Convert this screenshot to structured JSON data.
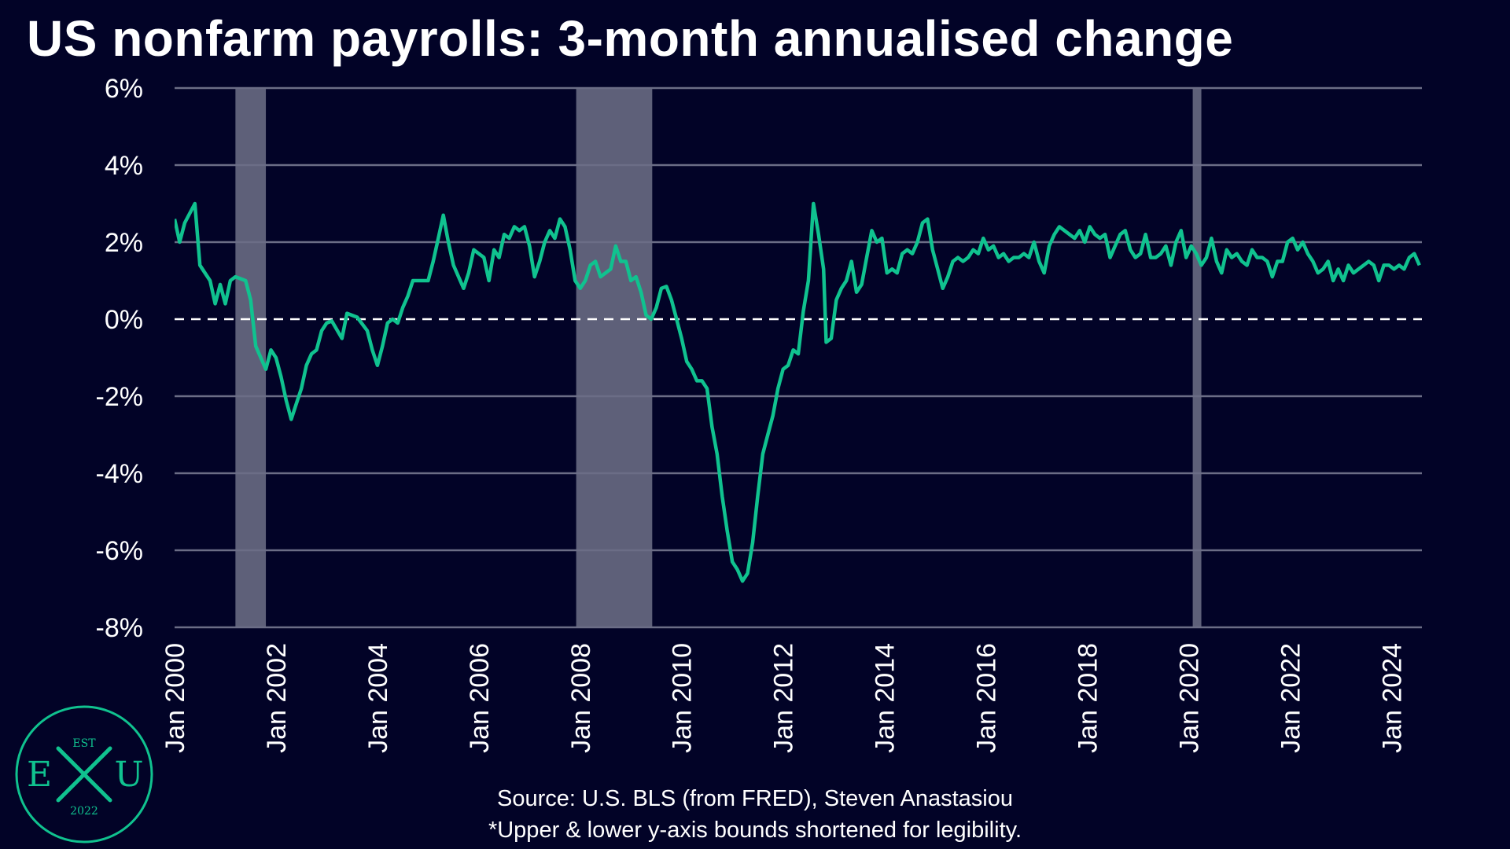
{
  "title": "US nonfarm payrolls: 3-month annualised change",
  "footer": {
    "source": "Source: U.S. BLS (from FRED), Steven Anastasiou",
    "note": "*Upper & lower y-axis bounds shortened for legibility."
  },
  "logo": {
    "top": "EST",
    "left": "E",
    "right": "U",
    "bottom": "2022",
    "center_icon": "crossed-quills-icon"
  },
  "colors": {
    "background": "#020327",
    "line": "#10C28F",
    "recession": "#5E6079",
    "grid": "#6B6D86",
    "zero_line": "#FFFFFF"
  },
  "chart_data": {
    "type": "line",
    "title": "US nonfarm payrolls: 3-month annualised change",
    "ylim": [
      -8,
      6
    ],
    "yticks": [
      6,
      4,
      2,
      0,
      -2,
      -4,
      -6,
      -8
    ],
    "ytick_labels": [
      "6%",
      "4%",
      "2%",
      "0%",
      "-2%",
      "-4%",
      "-6%",
      "-8%"
    ],
    "xlim": [
      2000.0,
      2024.6
    ],
    "xticks": [
      2000,
      2002,
      2004,
      2006,
      2008,
      2010,
      2012,
      2014,
      2016,
      2018,
      2020,
      2022,
      2024
    ],
    "xtick_labels": [
      "Jan 2000",
      "Jan 2002",
      "Jan 2004",
      "Jan 2006",
      "Jan 2008",
      "Jan 2010",
      "Jan 2012",
      "Jan 2014",
      "Jan 2016",
      "Jan 2018",
      "Jan 2020",
      "Jan 2022",
      "Jan 2024"
    ],
    "grid": true,
    "zero_line": "dashed",
    "recessions": [
      [
        2001.2,
        2001.8
      ],
      [
        2007.92,
        2009.42
      ],
      [
        2020.08,
        2020.25
      ]
    ],
    "series": [
      {
        "points": [
          [
            2000.0,
            2.6
          ],
          [
            2000.1,
            2.0
          ],
          [
            2000.2,
            2.5
          ],
          [
            2000.4,
            3.0
          ],
          [
            2000.5,
            1.4
          ],
          [
            2000.7,
            1.0
          ],
          [
            2000.8,
            0.4
          ],
          [
            2000.9,
            0.9
          ],
          [
            2001.0,
            0.4
          ],
          [
            2001.1,
            1.0
          ],
          [
            2001.2,
            1.1
          ],
          [
            2001.4,
            1.0
          ],
          [
            2001.5,
            0.5
          ],
          [
            2001.6,
            -0.7
          ],
          [
            2001.7,
            -1.0
          ],
          [
            2001.8,
            -1.3
          ],
          [
            2001.9,
            -0.8
          ],
          [
            2002.0,
            -1.0
          ],
          [
            2002.1,
            -1.5
          ],
          [
            2002.2,
            -2.1
          ],
          [
            2002.3,
            -2.6
          ],
          [
            2002.4,
            -2.2
          ],
          [
            2002.5,
            -1.8
          ],
          [
            2002.6,
            -1.2
          ],
          [
            2002.7,
            -0.9
          ],
          [
            2002.8,
            -0.8
          ],
          [
            2002.9,
            -0.3
          ],
          [
            2003.0,
            -0.1
          ],
          [
            2003.1,
            -0.05
          ],
          [
            2003.3,
            -0.5
          ],
          [
            2003.4,
            0.15
          ],
          [
            2003.6,
            0.05
          ],
          [
            2003.8,
            -0.3
          ],
          [
            2003.9,
            -0.8
          ],
          [
            2004.0,
            -1.2
          ],
          [
            2004.1,
            -0.7
          ],
          [
            2004.2,
            -0.1
          ],
          [
            2004.3,
            0.0
          ],
          [
            2004.4,
            -0.1
          ],
          [
            2004.5,
            0.3
          ],
          [
            2004.6,
            0.6
          ],
          [
            2004.7,
            1.0
          ],
          [
            2004.9,
            1.0
          ],
          [
            2005.0,
            1.0
          ],
          [
            2005.1,
            1.5
          ],
          [
            2005.2,
            2.1
          ],
          [
            2005.3,
            2.7
          ],
          [
            2005.4,
            2.0
          ],
          [
            2005.5,
            1.4
          ],
          [
            2005.7,
            0.8
          ],
          [
            2005.8,
            1.2
          ],
          [
            2005.9,
            1.8
          ],
          [
            2006.0,
            1.7
          ],
          [
            2006.1,
            1.6
          ],
          [
            2006.2,
            1.0
          ],
          [
            2006.3,
            1.8
          ],
          [
            2006.4,
            1.6
          ],
          [
            2006.5,
            2.2
          ],
          [
            2006.6,
            2.1
          ],
          [
            2006.7,
            2.4
          ],
          [
            2006.8,
            2.3
          ],
          [
            2006.9,
            2.4
          ],
          [
            2007.0,
            1.9
          ],
          [
            2007.1,
            1.1
          ],
          [
            2007.2,
            1.5
          ],
          [
            2007.3,
            2.0
          ],
          [
            2007.4,
            2.3
          ],
          [
            2007.5,
            2.1
          ],
          [
            2007.6,
            2.6
          ],
          [
            2007.7,
            2.4
          ],
          [
            2007.8,
            1.8
          ],
          [
            2007.9,
            1.0
          ],
          [
            2008.0,
            0.8
          ],
          [
            2008.1,
            1.0
          ],
          [
            2008.2,
            1.4
          ],
          [
            2008.3,
            1.5
          ],
          [
            2008.4,
            1.1
          ],
          [
            2008.5,
            1.2
          ],
          [
            2008.6,
            1.3
          ],
          [
            2008.7,
            1.9
          ],
          [
            2008.8,
            1.5
          ],
          [
            2008.9,
            1.5
          ],
          [
            2009.0,
            1.0
          ],
          [
            2009.1,
            1.1
          ],
          [
            2009.2,
            0.7
          ],
          [
            2009.3,
            0.1
          ],
          [
            2009.4,
            0.0
          ],
          [
            2009.5,
            0.3
          ],
          [
            2009.6,
            0.8
          ],
          [
            2009.7,
            0.85
          ],
          [
            2009.8,
            0.5
          ],
          [
            2009.9,
            0.0
          ],
          [
            2010.0,
            -0.5
          ],
          [
            2010.1,
            -1.1
          ],
          [
            2010.2,
            -1.3
          ],
          [
            2010.3,
            -1.6
          ],
          [
            2010.4,
            -1.6
          ],
          [
            2010.5,
            -1.8
          ],
          [
            2010.6,
            -2.8
          ],
          [
            2010.7,
            -3.5
          ],
          [
            2010.8,
            -4.6
          ],
          [
            2010.9,
            -5.5
          ],
          [
            2011.0,
            -6.3
          ],
          [
            2011.1,
            -6.5
          ],
          [
            2011.2,
            -6.8
          ],
          [
            2011.3,
            -6.6
          ],
          [
            2011.4,
            -5.8
          ],
          [
            2011.5,
            -4.6
          ],
          [
            2011.6,
            -3.5
          ],
          [
            2011.7,
            -3.0
          ],
          [
            2011.8,
            -2.5
          ],
          [
            2011.9,
            -1.8
          ],
          [
            2012.0,
            -1.3
          ],
          [
            2012.1,
            -1.2
          ],
          [
            2012.2,
            -0.8
          ],
          [
            2012.3,
            -0.9
          ],
          [
            2012.4,
            0.2
          ],
          [
            2012.5,
            1.0
          ],
          [
            2012.6,
            3.0
          ],
          [
            2012.7,
            2.2
          ],
          [
            2012.8,
            1.3
          ],
          [
            2012.85,
            -0.6
          ],
          [
            2012.95,
            -0.5
          ],
          [
            2013.05,
            0.5
          ],
          [
            2013.15,
            0.8
          ],
          [
            2013.25,
            1.0
          ],
          [
            2013.35,
            1.5
          ],
          [
            2013.45,
            0.7
          ],
          [
            2013.55,
            0.9
          ],
          [
            2013.65,
            1.6
          ],
          [
            2013.75,
            2.3
          ],
          [
            2013.85,
            2.0
          ],
          [
            2013.95,
            2.1
          ],
          [
            2014.05,
            1.2
          ],
          [
            2014.15,
            1.3
          ],
          [
            2014.25,
            1.2
          ],
          [
            2014.35,
            1.7
          ],
          [
            2014.45,
            1.8
          ],
          [
            2014.55,
            1.7
          ],
          [
            2014.65,
            2.0
          ],
          [
            2014.75,
            2.5
          ],
          [
            2014.85,
            2.6
          ],
          [
            2014.95,
            1.8
          ],
          [
            2015.05,
            1.3
          ],
          [
            2015.15,
            0.8
          ],
          [
            2015.25,
            1.1
          ],
          [
            2015.35,
            1.5
          ],
          [
            2015.45,
            1.6
          ],
          [
            2015.55,
            1.5
          ],
          [
            2015.65,
            1.6
          ],
          [
            2015.75,
            1.8
          ],
          [
            2015.85,
            1.7
          ],
          [
            2015.95,
            2.1
          ],
          [
            2016.05,
            1.8
          ],
          [
            2016.15,
            1.9
          ],
          [
            2016.25,
            1.6
          ],
          [
            2016.35,
            1.7
          ],
          [
            2016.45,
            1.5
          ],
          [
            2016.55,
            1.6
          ],
          [
            2016.65,
            1.6
          ],
          [
            2016.75,
            1.7
          ],
          [
            2016.85,
            1.6
          ],
          [
            2016.95,
            2.0
          ],
          [
            2017.05,
            1.5
          ],
          [
            2017.15,
            1.2
          ],
          [
            2017.25,
            1.9
          ],
          [
            2017.35,
            2.2
          ],
          [
            2017.45,
            2.4
          ],
          [
            2017.55,
            2.3
          ],
          [
            2017.65,
            2.2
          ],
          [
            2017.75,
            2.1
          ],
          [
            2017.85,
            2.3
          ],
          [
            2017.95,
            2.0
          ],
          [
            2018.05,
            2.4
          ],
          [
            2018.15,
            2.2
          ],
          [
            2018.25,
            2.1
          ],
          [
            2018.35,
            2.2
          ],
          [
            2018.45,
            1.6
          ],
          [
            2018.55,
            1.9
          ],
          [
            2018.65,
            2.2
          ],
          [
            2018.75,
            2.3
          ],
          [
            2018.85,
            1.8
          ],
          [
            2018.95,
            1.6
          ],
          [
            2019.05,
            1.7
          ],
          [
            2019.15,
            2.2
          ],
          [
            2019.25,
            1.6
          ],
          [
            2019.35,
            1.6
          ],
          [
            2019.45,
            1.7
          ],
          [
            2019.55,
            1.9
          ],
          [
            2019.65,
            1.4
          ],
          [
            2019.75,
            2.0
          ],
          [
            2019.85,
            2.3
          ],
          [
            2019.95,
            1.6
          ],
          [
            2020.05,
            1.9
          ],
          [
            2020.15,
            1.7
          ],
          [
            2020.25,
            1.4
          ],
          [
            2020.35,
            1.6
          ],
          [
            2020.45,
            2.1
          ],
          [
            2020.55,
            1.5
          ],
          [
            2020.65,
            1.2
          ],
          [
            2020.75,
            1.8
          ],
          [
            2020.85,
            1.6
          ],
          [
            2020.95,
            1.7
          ],
          [
            2021.05,
            1.5
          ],
          [
            2021.15,
            1.4
          ],
          [
            2021.25,
            1.8
          ],
          [
            2021.35,
            1.6
          ],
          [
            2021.45,
            1.6
          ],
          [
            2021.55,
            1.5
          ],
          [
            2021.65,
            1.1
          ],
          [
            2021.75,
            1.5
          ],
          [
            2021.85,
            1.5
          ],
          [
            2021.95,
            2.0
          ],
          [
            2022.05,
            2.1
          ],
          [
            2022.15,
            1.8
          ],
          [
            2022.25,
            2.0
          ],
          [
            2022.35,
            1.7
          ],
          [
            2022.45,
            1.5
          ],
          [
            2022.55,
            1.2
          ],
          [
            2022.65,
            1.3
          ],
          [
            2022.75,
            1.5
          ],
          [
            2022.85,
            1.0
          ],
          [
            2022.95,
            1.3
          ],
          [
            2023.05,
            1.0
          ],
          [
            2023.15,
            1.4
          ],
          [
            2023.25,
            1.2
          ],
          [
            2023.35,
            1.3
          ],
          [
            2023.45,
            1.4
          ],
          [
            2023.55,
            1.5
          ],
          [
            2023.65,
            1.4
          ],
          [
            2023.75,
            1.0
          ],
          [
            2023.85,
            1.4
          ],
          [
            2023.95,
            1.4
          ],
          [
            2024.05,
            1.3
          ],
          [
            2024.15,
            1.4
          ],
          [
            2024.25,
            1.3
          ],
          [
            2024.35,
            1.6
          ],
          [
            2024.45,
            1.7
          ],
          [
            2024.55,
            1.4
          ]
        ]
      }
    ]
  }
}
